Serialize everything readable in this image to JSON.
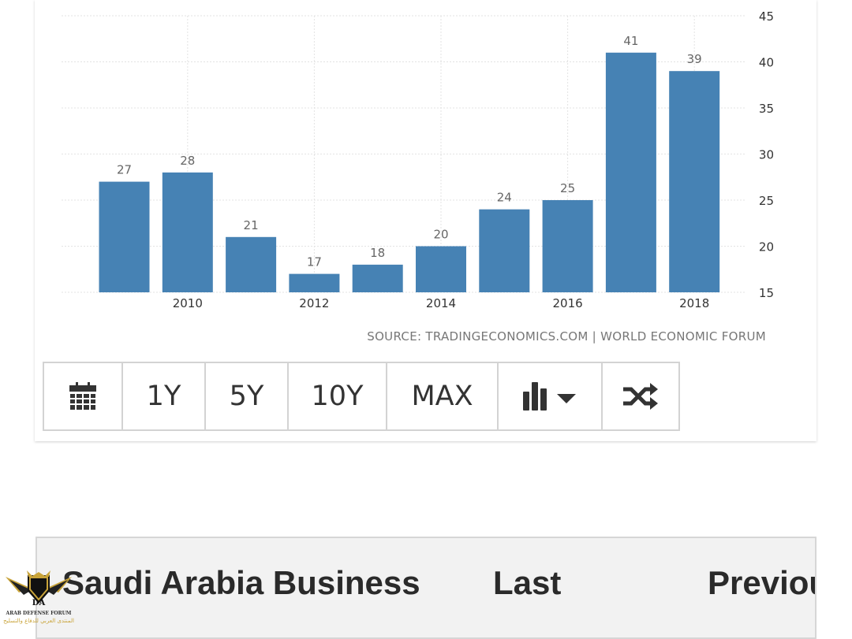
{
  "chart_data": {
    "type": "bar",
    "x": [
      2009,
      2010,
      2011,
      2012,
      2013,
      2014,
      2015,
      2016,
      2017,
      2018
    ],
    "values": [
      27,
      28,
      21,
      17,
      18,
      20,
      24,
      25,
      41,
      39
    ],
    "data_labels": [
      "27",
      "28",
      "21",
      "17",
      "18",
      "20",
      "24",
      "25",
      "41",
      "39"
    ],
    "x_tick_labels": [
      "2010",
      "2012",
      "2014",
      "2016",
      "2018"
    ],
    "y_tick_labels": [
      "45",
      "40",
      "35",
      "30",
      "25",
      "20",
      "15"
    ],
    "ylim": [
      15,
      45
    ],
    "y_axis_side": "right",
    "grid": true,
    "bar_color": "#4682b4",
    "source": "SOURCE: TRADINGECONOMICS.COM | WORLD ECONOMIC FORUM"
  },
  "toolbar": {
    "buttons": [
      {
        "icon": "calendar-icon",
        "label": ""
      },
      {
        "label": "1Y"
      },
      {
        "label": "5Y"
      },
      {
        "label": "10Y"
      },
      {
        "label": "MAX"
      },
      {
        "icon": "bar-chart-dropdown-icon",
        "label": ""
      },
      {
        "icon": "shuffle-icon",
        "label": ""
      }
    ]
  },
  "table": {
    "headers": [
      "Saudi Arabia Business",
      "Last",
      "Previou"
    ]
  },
  "watermark": {
    "title": "ARAB DEFENSE FORUM",
    "subtitle": "المنتدى العربي للدفاع والتسليح",
    "badge": "DA"
  }
}
